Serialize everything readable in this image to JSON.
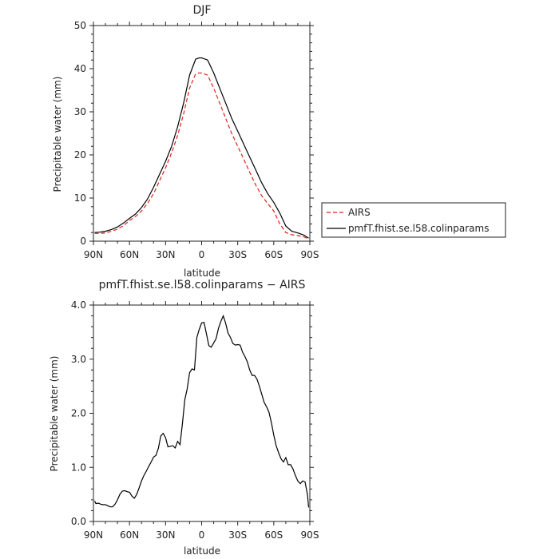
{
  "chart_data": [
    {
      "type": "line",
      "title": "DJF",
      "xlabel": "latitude",
      "ylabel": "Precipitable water (mm)",
      "xlim": [
        90,
        -90
      ],
      "ylim": [
        0,
        50
      ],
      "xticks": [
        90,
        60,
        30,
        0,
        -30,
        -60,
        -90
      ],
      "xtick_labels": [
        "90N",
        "60N",
        "30N",
        "0",
        "30S",
        "60S",
        "90S"
      ],
      "yticks": [
        0,
        10,
        20,
        30,
        40,
        50
      ],
      "ytick_labels": [
        "0",
        "10",
        "20",
        "30",
        "40",
        "50"
      ],
      "grid": false,
      "legend": "outside-right",
      "series": [
        {
          "name": "AIRS",
          "color": "#e0201b",
          "dash": "dashed",
          "x": [
            89,
            85,
            80,
            75,
            70,
            65,
            60,
            55,
            50,
            45,
            40,
            35,
            30,
            25,
            20,
            15,
            10,
            5,
            2,
            0,
            -5,
            -10,
            -15,
            -20,
            -25,
            -30,
            -35,
            -40,
            -45,
            -50,
            -55,
            -60,
            -65,
            -70,
            -75,
            -80,
            -85,
            -89
          ],
          "y": [
            1.8,
            1.8,
            1.9,
            2.3,
            2.8,
            3.6,
            4.8,
            5.7,
            7.0,
            8.8,
            11.0,
            14.0,
            17.0,
            20.5,
            24.5,
            29.5,
            35.5,
            38.8,
            39.0,
            39.0,
            38.5,
            35.5,
            32.0,
            28.5,
            25.0,
            22.0,
            19.0,
            16.0,
            13.0,
            10.5,
            8.7,
            7.0,
            4.0,
            2.0,
            1.5,
            1.3,
            1.0,
            0.5
          ]
        },
        {
          "name": "pmfT.fhist.se.l58.colinparams",
          "color": "#000000",
          "dash": "solid",
          "x": [
            89,
            85,
            80,
            75,
            70,
            65,
            60,
            55,
            50,
            45,
            40,
            35,
            30,
            25,
            20,
            15,
            10,
            5,
            2,
            0,
            -5,
            -10,
            -15,
            -20,
            -25,
            -30,
            -35,
            -40,
            -45,
            -50,
            -55,
            -60,
            -65,
            -70,
            -75,
            -80,
            -85,
            -89
          ],
          "y": [
            2.0,
            2.1,
            2.3,
            2.7,
            3.3,
            4.2,
            5.3,
            6.3,
            7.8,
            9.8,
            12.5,
            15.5,
            18.5,
            22.0,
            26.5,
            32.0,
            38.5,
            42.2,
            42.5,
            42.5,
            42.0,
            39.0,
            35.5,
            32.0,
            28.5,
            25.5,
            22.5,
            19.5,
            16.5,
            13.5,
            11.0,
            9.0,
            6.5,
            3.5,
            2.3,
            1.9,
            1.4,
            0.7
          ]
        }
      ]
    },
    {
      "type": "line",
      "title": "pmfT.fhist.se.l58.colinparams − AIRS",
      "xlabel": "latitude",
      "ylabel": "Precipitable water (mm)",
      "xlim": [
        90,
        -90
      ],
      "ylim": [
        0,
        4
      ],
      "xticks": [
        90,
        60,
        30,
        0,
        -30,
        -60,
        -90
      ],
      "xtick_labels": [
        "90N",
        "60N",
        "30N",
        "0",
        "30S",
        "60S",
        "90S"
      ],
      "yticks": [
        0,
        1,
        2,
        3,
        4
      ],
      "ytick_labels": [
        "0.0",
        "1.0",
        "2.0",
        "3.0",
        "4.0"
      ],
      "grid": false,
      "series": [
        {
          "color": "#000000",
          "dash": "solid",
          "x": [
            89,
            88,
            86,
            84,
            82,
            80,
            78,
            76,
            74,
            72,
            70,
            68,
            66,
            64,
            62,
            60,
            58,
            56,
            54,
            52,
            50,
            48,
            46,
            44,
            42,
            40,
            38,
            36,
            34,
            32,
            30,
            28,
            26,
            24,
            22,
            20,
            18,
            16,
            14,
            12,
            10,
            8,
            6,
            4,
            2,
            0,
            -2,
            -4,
            -6,
            -8,
            -10,
            -12,
            -14,
            -16,
            -18,
            -20,
            -22,
            -24,
            -26,
            -28,
            -30,
            -32,
            -34,
            -36,
            -38,
            -40,
            -42,
            -44,
            -46,
            -48,
            -50,
            -52,
            -54,
            -56,
            -58,
            -60,
            -62,
            -64,
            -66,
            -68,
            -70,
            -72,
            -74,
            -76,
            -78,
            -80,
            -82,
            -84,
            -86,
            -88,
            -89
          ],
          "y": [
            0.38,
            0.33,
            0.34,
            0.32,
            0.31,
            0.31,
            0.29,
            0.27,
            0.27,
            0.32,
            0.4,
            0.5,
            0.56,
            0.57,
            0.55,
            0.54,
            0.47,
            0.43,
            0.5,
            0.62,
            0.75,
            0.85,
            0.93,
            1.02,
            1.1,
            1.19,
            1.22,
            1.35,
            1.58,
            1.63,
            1.55,
            1.38,
            1.39,
            1.4,
            1.36,
            1.48,
            1.42,
            1.8,
            2.25,
            2.45,
            2.75,
            2.82,
            2.8,
            3.4,
            3.55,
            3.67,
            3.68,
            3.47,
            3.25,
            3.22,
            3.3,
            3.38,
            3.57,
            3.7,
            3.8,
            3.66,
            3.48,
            3.4,
            3.29,
            3.26,
            3.27,
            3.26,
            3.13,
            3.05,
            2.95,
            2.8,
            2.7,
            2.7,
            2.63,
            2.5,
            2.35,
            2.2,
            2.12,
            2.02,
            1.83,
            1.6,
            1.4,
            1.27,
            1.16,
            1.1,
            1.18,
            1.05,
            1.05,
            0.97,
            0.85,
            0.75,
            0.7,
            0.75,
            0.73,
            0.5,
            0.26
          ]
        }
      ]
    }
  ]
}
